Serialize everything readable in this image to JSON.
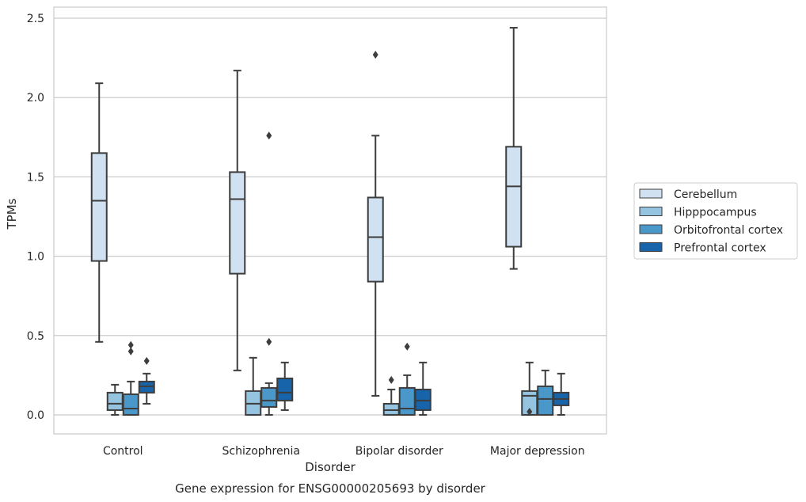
{
  "chart_data": {
    "type": "boxplot",
    "title": "",
    "caption": "Gene expression for ENSG00000205693 by disorder",
    "xlabel": "Disorder",
    "ylabel": "TPMs",
    "ylim": [
      -0.12,
      2.57
    ],
    "yticks": [
      0.0,
      0.5,
      1.0,
      1.5,
      2.0,
      2.5
    ],
    "ytick_labels": [
      "0.0",
      "0.5",
      "1.0",
      "1.5",
      "2.0",
      "2.5"
    ],
    "grid": "horizontal",
    "legend_position": "right, outside plot",
    "categories": [
      "Control",
      "Schizophrenia",
      "Bipolar disorder",
      "Major depression"
    ],
    "series": [
      {
        "name": "Cerebellum",
        "color": "#d0e1f2",
        "boxes": [
          {
            "whisker_low": 0.46,
            "q1": 0.97,
            "median": 1.35,
            "q3": 1.65,
            "whisker_high": 2.09,
            "outliers": []
          },
          {
            "whisker_low": 0.28,
            "q1": 0.89,
            "median": 1.36,
            "q3": 1.53,
            "whisker_high": 2.17,
            "outliers": []
          },
          {
            "whisker_low": 0.12,
            "q1": 0.84,
            "median": 1.12,
            "q3": 1.37,
            "whisker_high": 1.76,
            "outliers": [
              2.27
            ]
          },
          {
            "whisker_low": 0.92,
            "q1": 1.06,
            "median": 1.44,
            "q3": 1.69,
            "whisker_high": 2.44,
            "outliers": []
          }
        ]
      },
      {
        "name": "Hipppocampus",
        "color": "#94c4df",
        "boxes": [
          {
            "whisker_low": 0.0,
            "q1": 0.03,
            "median": 0.07,
            "q3": 0.14,
            "whisker_high": 0.19,
            "outliers": []
          },
          {
            "whisker_low": 0.0,
            "q1": 0.0,
            "median": 0.07,
            "q3": 0.15,
            "whisker_high": 0.36,
            "outliers": []
          },
          {
            "whisker_low": 0.0,
            "q1": 0.0,
            "median": 0.03,
            "q3": 0.07,
            "whisker_high": 0.16,
            "outliers": [
              0.22
            ]
          },
          {
            "whisker_low": 0.0,
            "q1": 0.0,
            "median": 0.12,
            "q3": 0.15,
            "whisker_high": 0.33,
            "outliers": [
              0.02
            ]
          }
        ]
      },
      {
        "name": "Orbitofrontal cortex",
        "color": "#4a98c9",
        "boxes": [
          {
            "whisker_low": 0.0,
            "q1": 0.0,
            "median": 0.04,
            "q3": 0.13,
            "whisker_high": 0.21,
            "outliers": [
              0.4,
              0.44
            ]
          },
          {
            "whisker_low": 0.0,
            "q1": 0.05,
            "median": 0.09,
            "q3": 0.17,
            "whisker_high": 0.2,
            "outliers": [
              0.46,
              1.76
            ]
          },
          {
            "whisker_low": 0.0,
            "q1": 0.0,
            "median": 0.04,
            "q3": 0.17,
            "whisker_high": 0.25,
            "outliers": [
              0.43
            ]
          },
          {
            "whisker_low": 0.0,
            "q1": 0.0,
            "median": 0.1,
            "q3": 0.18,
            "whisker_high": 0.28,
            "outliers": []
          }
        ]
      },
      {
        "name": "Prefrontal cortex",
        "color": "#1764ab",
        "boxes": [
          {
            "whisker_low": 0.07,
            "q1": 0.14,
            "median": 0.18,
            "q3": 0.21,
            "whisker_high": 0.26,
            "outliers": [
              0.34
            ]
          },
          {
            "whisker_low": 0.03,
            "q1": 0.09,
            "median": 0.14,
            "q3": 0.23,
            "whisker_high": 0.33,
            "outliers": []
          },
          {
            "whisker_low": 0.0,
            "q1": 0.03,
            "median": 0.09,
            "q3": 0.16,
            "whisker_high": 0.33,
            "outliers": []
          },
          {
            "whisker_low": 0.0,
            "q1": 0.06,
            "median": 0.1,
            "q3": 0.14,
            "whisker_high": 0.26,
            "outliers": []
          }
        ]
      }
    ]
  }
}
